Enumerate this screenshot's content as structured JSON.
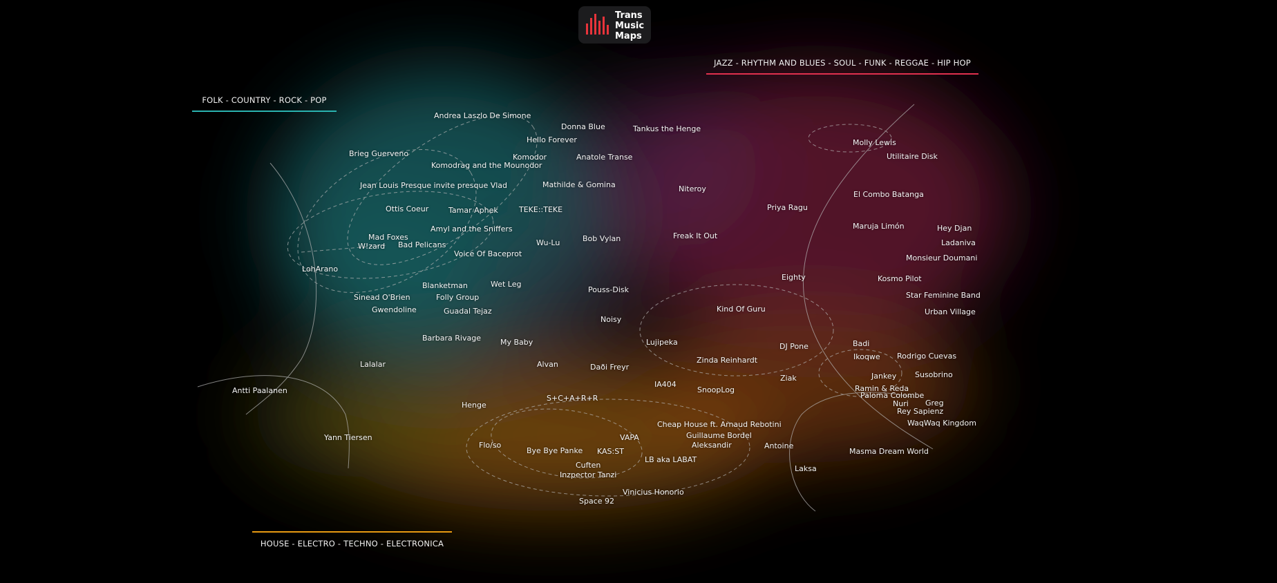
{
  "logo": {
    "line1": "Trans",
    "line2": "Music",
    "line3": "Maps",
    "accent": "#e8343b",
    "icon": "bars-icon"
  },
  "genres": {
    "folk": "FOLK - COUNTRY - ROCK - POP",
    "jazz": "JAZZ - RHYTHM AND BLUES - SOUL - FUNK - REGGAE - HIP HOP",
    "house": "HOUSE - ELECTRO - TECHNO - ELECTRONICA"
  },
  "colors": {
    "folk": "#2ab3b0",
    "jazz": "#e0304e",
    "house": "#e89a12"
  },
  "artists": [
    "Andrea Laszlo De Simone",
    "Donna Blue",
    "Tankus the Henge",
    "Hello Forever",
    "Brieg Guerveno",
    "Komodor",
    "Anatole Transe",
    "Komodrag and the Mounodor",
    "Jean Louis Presque invite presque Vlad",
    "Mathilde & Gomina",
    "Niteroy",
    "Ottis Coeur",
    "Tamar Aphek",
    "TEKE::TEKE",
    "Amyl and the Sniffers",
    "Mad Foxes",
    "Bob Vylan",
    "Freak It Out",
    "W!zard",
    "Bad Pelicans",
    "Wu-Lu",
    "Voice Of Baceprot",
    "LohArano",
    "Blanketman",
    "Wet Leg",
    "Pouss-Disk",
    "Sinead O'Brien",
    "Folly Group",
    "Gwendoline",
    "Guadal Tejaz",
    "Noisy",
    "Barbara Rivage",
    "My Baby",
    "Lujipeka",
    "Lalalar",
    "Alvan",
    "Daði Freyr",
    "Antti Paalanen",
    "IA404",
    "SnoopLog",
    "S+C+A+R+R",
    "Henge",
    "Cheap House ft. Arnaud Rebotini",
    "Guillaume Bordel",
    "Aleksandir",
    "VAPA",
    "Yann Tiersen",
    "Flo/so",
    "Bye Bye Panke",
    "KAS:ST",
    "LB aka LABAT",
    "Cuften",
    "Inzpector Tanzi",
    "Vinicius Honorio",
    "Space 92",
    "Molly Lewis",
    "Utilitaire Disk",
    "El Combo Batanga",
    "Priya Ragu",
    "Maruja Limón",
    "Hey Djan",
    "Ladaniva",
    "Monsieur Doumani",
    "Eighty",
    "Kosmo Pilot",
    "Star Feminine Band",
    "Kind Of Guru",
    "Urban Village",
    "DJ Pone",
    "Zinda Reinhardt",
    "Badi",
    "Ikoqwe",
    "Rodrigo Cuevas",
    "Jankey",
    "Susobrino",
    "Ziak",
    "Ramin & Reda",
    "Paloma Colombe",
    "Nuri",
    "Greg",
    "Rey Sapienz",
    "WaqWaq Kingdom",
    "Antoine",
    "Masma Dream World",
    "Laksa"
  ]
}
